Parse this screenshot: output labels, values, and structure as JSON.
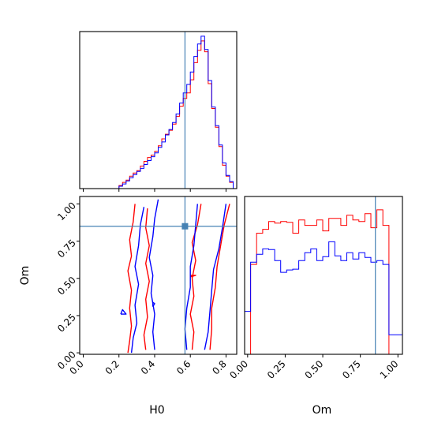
{
  "chart_data": [
    {
      "type": "histogram",
      "panel": "H0 marginal",
      "xlim": [
        -0.02,
        0.86
      ],
      "bin_edges": [
        0.2,
        0.22,
        0.24,
        0.26,
        0.28,
        0.3,
        0.32,
        0.34,
        0.36,
        0.38,
        0.4,
        0.42,
        0.44,
        0.46,
        0.48,
        0.5,
        0.52,
        0.54,
        0.56,
        0.58,
        0.6,
        0.62,
        0.64,
        0.66,
        0.68,
        0.7,
        0.72,
        0.74,
        0.76,
        0.78,
        0.8,
        0.82,
        0.84
      ],
      "series": [
        {
          "color": "#ff0000",
          "values": [
            0.4,
            0.8,
            1.1,
            1.6,
            2.0,
            2.3,
            2.9,
            3.5,
            4.0,
            4.3,
            4.8,
            5.5,
            6.4,
            7.0,
            7.5,
            8.3,
            9.3,
            10.6,
            11.6,
            12.3,
            14.0,
            16.2,
            17.8,
            19.0,
            17.6,
            13.5,
            10.3,
            7.9,
            5.4,
            3.0,
            1.6,
            0.8
          ]
        },
        {
          "color": "#0000ff",
          "values": [
            0.3,
            0.6,
            1.0,
            1.4,
            1.8,
            2.2,
            2.6,
            3.1,
            3.6,
            4.1,
            4.6,
            5.3,
            6.0,
            6.9,
            7.6,
            8.5,
            9.6,
            11.0,
            12.3,
            13.4,
            15.0,
            17.0,
            18.6,
            19.6,
            17.9,
            13.9,
            10.5,
            8.1,
            5.6,
            3.3,
            1.7,
            0.9
          ]
        }
      ],
      "truth": 0.57
    },
    {
      "type": "contour",
      "panel": "H0 vs Om",
      "xlabel": "H0",
      "ylabel": "Om",
      "xlim": [
        -0.02,
        0.86
      ],
      "ylim": [
        -0.01,
        1.05
      ],
      "xticks": [
        "0.0",
        "0.2",
        "0.4",
        "0.6",
        "0.8"
      ],
      "yticks": [
        "0.00",
        "0.25",
        "0.50",
        "0.75",
        "1.00"
      ],
      "series": [
        {
          "color": "#ff0000",
          "contours": [
            [
              [
                0.25,
                0.0
              ],
              [
                0.26,
                0.08
              ],
              [
                0.27,
                0.18
              ],
              [
                0.26,
                0.3
              ],
              [
                0.27,
                0.42
              ],
              [
                0.25,
                0.55
              ],
              [
                0.27,
                0.65
              ],
              [
                0.26,
                0.76
              ],
              [
                0.28,
                0.88
              ],
              [
                0.29,
                1.0
              ]
            ],
            [
              [
                0.35,
                0.02
              ],
              [
                0.34,
                0.12
              ],
              [
                0.36,
                0.24
              ],
              [
                0.35,
                0.36
              ],
              [
                0.37,
                0.48
              ],
              [
                0.35,
                0.6
              ],
              [
                0.37,
                0.72
              ],
              [
                0.35,
                0.84
              ],
              [
                0.36,
                0.97
              ]
            ],
            [
              [
                0.61,
                0.02
              ],
              [
                0.62,
                0.14
              ],
              [
                0.6,
                0.26
              ],
              [
                0.62,
                0.38
              ],
              [
                0.61,
                0.5
              ],
              [
                0.63,
                0.62
              ],
              [
                0.61,
                0.74
              ],
              [
                0.64,
                0.86
              ],
              [
                0.66,
                1.0
              ]
            ],
            [
              [
                0.71,
                0.02
              ],
              [
                0.72,
                0.16
              ],
              [
                0.72,
                0.3
              ],
              [
                0.74,
                0.44
              ],
              [
                0.75,
                0.58
              ],
              [
                0.77,
                0.72
              ],
              [
                0.79,
                0.86
              ],
              [
                0.82,
                1.0
              ]
            ],
            [
              [
                0.6,
                0.52
              ],
              [
                0.63,
                0.52
              ],
              [
                0.6,
                0.51
              ],
              [
                0.6,
                0.52
              ]
            ]
          ]
        },
        {
          "color": "#0000ff",
          "contours": [
            [
              [
                0.27,
                0.0
              ],
              [
                0.28,
                0.1
              ],
              [
                0.3,
                0.2
              ],
              [
                0.29,
                0.32
              ],
              [
                0.31,
                0.46
              ],
              [
                0.29,
                0.58
              ],
              [
                0.31,
                0.72
              ],
              [
                0.32,
                0.86
              ],
              [
                0.34,
                0.98
              ]
            ],
            [
              [
                0.4,
                0.02
              ],
              [
                0.39,
                0.14
              ],
              [
                0.4,
                0.26
              ],
              [
                0.38,
                0.4
              ],
              [
                0.39,
                0.52
              ],
              [
                0.37,
                0.64
              ],
              [
                0.39,
                0.78
              ],
              [
                0.4,
                0.9
              ],
              [
                0.42,
                1.03
              ]
            ],
            [
              [
                0.58,
                0.02
              ],
              [
                0.57,
                0.16
              ],
              [
                0.58,
                0.3
              ],
              [
                0.6,
                0.44
              ],
              [
                0.6,
                0.58
              ],
              [
                0.62,
                0.72
              ],
              [
                0.63,
                0.86
              ],
              [
                0.64,
                1.0
              ]
            ],
            [
              [
                0.68,
                0.02
              ],
              [
                0.7,
                0.14
              ],
              [
                0.71,
                0.28
              ],
              [
                0.72,
                0.42
              ],
              [
                0.73,
                0.56
              ],
              [
                0.76,
                0.7
              ],
              [
                0.78,
                0.84
              ],
              [
                0.8,
                1.0
              ]
            ],
            [
              [
                0.21,
                0.26
              ],
              [
                0.24,
                0.26
              ],
              [
                0.22,
                0.29
              ],
              [
                0.21,
                0.26
              ]
            ],
            [
              [
                0.39,
                0.31
              ],
              [
                0.39,
                0.34
              ],
              [
                0.4,
                0.33
              ],
              [
                0.39,
                0.31
              ]
            ]
          ]
        }
      ],
      "truth": [
        0.57,
        0.85
      ]
    },
    {
      "type": "histogram",
      "panel": "Om marginal",
      "xlabel": "Om",
      "xlim": [
        -0.02,
        1.03
      ],
      "xticks": [
        "0.00",
        "0.25",
        "0.50",
        "0.75",
        "1.00"
      ],
      "bin_edges": [
        -0.02,
        0.02,
        0.06,
        0.1,
        0.14,
        0.18,
        0.22,
        0.26,
        0.3,
        0.34,
        0.38,
        0.42,
        0.46,
        0.5,
        0.54,
        0.58,
        0.62,
        0.66,
        0.7,
        0.74,
        0.78,
        0.82,
        0.86,
        0.9,
        0.94,
        0.98,
        1.03
      ],
      "series": [
        {
          "color": "#ff0000",
          "values": [
            0.0,
            1.15,
            1.55,
            1.6,
            1.7,
            1.68,
            1.7,
            1.69,
            1.55,
            1.72,
            1.65,
            1.65,
            1.72,
            1.58,
            1.74,
            1.74,
            1.65,
            1.78,
            1.72,
            1.7,
            1.8,
            1.62,
            1.85,
            1.65,
            0.0,
            0.0
          ]
        },
        {
          "color": "#0000ff",
          "values": [
            0.55,
            1.18,
            1.28,
            1.35,
            1.34,
            1.2,
            1.05,
            1.08,
            1.09,
            1.2,
            1.3,
            1.35,
            1.2,
            1.25,
            1.44,
            1.26,
            1.2,
            1.3,
            1.22,
            1.3,
            1.24,
            1.18,
            1.2,
            1.15,
            0.25,
            0.25
          ]
        }
      ],
      "truth": 0.85
    }
  ]
}
